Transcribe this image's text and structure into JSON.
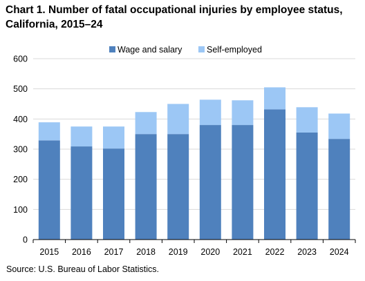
{
  "title": "Chart 1. Number of fatal occupational injuries by employee status, California, 2015–24",
  "source": "Source: U.S. Bureau  of Labor Statistics.",
  "colors": {
    "wage": "#4f81bd",
    "self": "#9cc7f5"
  },
  "chart_data": {
    "type": "bar",
    "stacked": true,
    "title": "Chart 1. Number of fatal occupational injuries by employee status, California, 2015–24",
    "xlabel": "",
    "ylabel": "",
    "categories": [
      "2015",
      "2016",
      "2017",
      "2018",
      "2019",
      "2020",
      "2021",
      "2022",
      "2023",
      "2024"
    ],
    "series": [
      {
        "name": "Wage and salary",
        "values": [
          329,
          309,
          302,
          350,
          350,
          380,
          380,
          432,
          355,
          334
        ]
      },
      {
        "name": "Self-employed",
        "values": [
          60,
          66,
          73,
          73,
          100,
          84,
          82,
          73,
          84,
          84
        ]
      }
    ],
    "ylim": [
      0,
      600
    ],
    "yticks": [
      0,
      100,
      200,
      300,
      400,
      500,
      600
    ],
    "grid": true,
    "legend": "top"
  }
}
